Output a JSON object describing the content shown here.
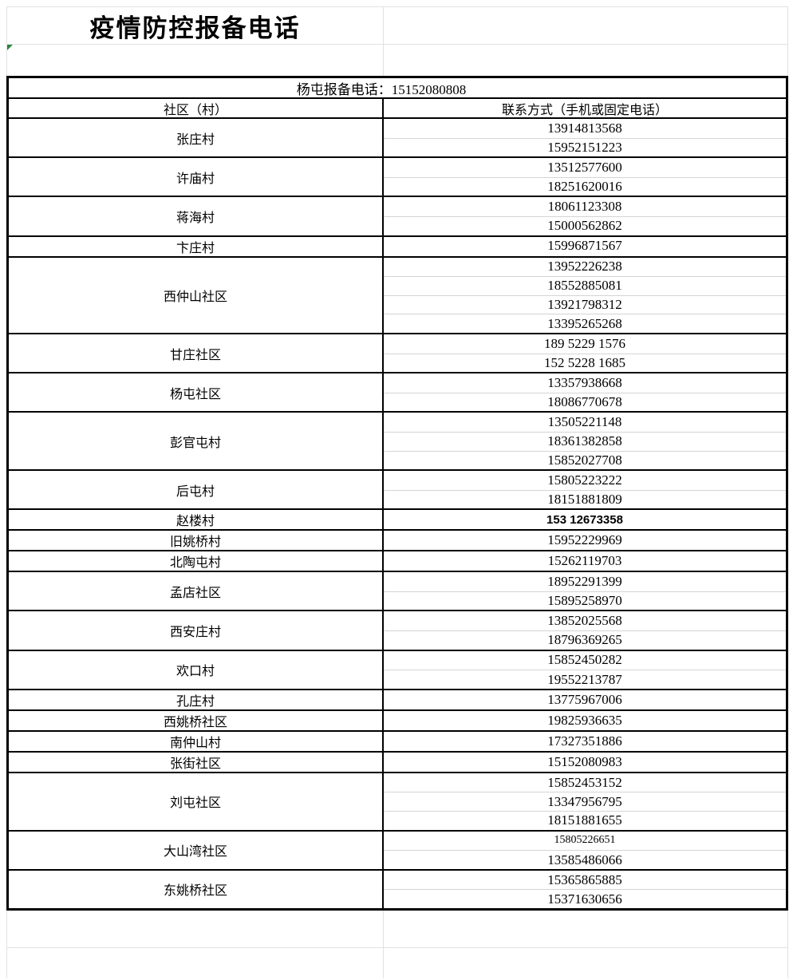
{
  "title": "疫情防控报备电话",
  "banner": "杨屯报备电话：15152080808",
  "columns": {
    "left": "社区（村）",
    "right": "联系方式（手机或固定电话）"
  },
  "colors": {
    "border_black": "#000000",
    "grid_light": "#e2e2e2",
    "row_divider": "#d4d4d4",
    "error_triangle_green": "#2e8540"
  },
  "icons": {
    "cell_error_indicator": "green-corner-triangle"
  },
  "groups": [
    {
      "name": "张庄村",
      "phones": [
        {
          "number": "13914813568"
        },
        {
          "number": "15952151223"
        }
      ]
    },
    {
      "name": "许庙村",
      "phones": [
        {
          "number": "13512577600"
        },
        {
          "number": "18251620016"
        }
      ]
    },
    {
      "name": "蒋海村",
      "phones": [
        {
          "number": "18061123308"
        },
        {
          "number": "15000562862"
        }
      ]
    },
    {
      "name": "卞庄村",
      "phones": [
        {
          "number": "15996871567"
        }
      ]
    },
    {
      "name": "西仲山社区",
      "phones": [
        {
          "number": "13952226238"
        },
        {
          "number": "18552885081"
        },
        {
          "number": "13921798312"
        },
        {
          "number": "13395265268"
        }
      ]
    },
    {
      "name": "甘庄社区",
      "phones": [
        {
          "number": "189 5229 1576"
        },
        {
          "number": "152 5228 1685"
        }
      ]
    },
    {
      "name": "杨屯社区",
      "phones": [
        {
          "number": "13357938668"
        },
        {
          "number": "18086770678"
        }
      ]
    },
    {
      "name": "彭官屯村",
      "phones": [
        {
          "number": "13505221148"
        },
        {
          "number": "18361382858"
        },
        {
          "number": "15852027708"
        }
      ]
    },
    {
      "name": "后屯村",
      "phones": [
        {
          "number": "15805223222"
        },
        {
          "number": "18151881809"
        }
      ]
    },
    {
      "name": "赵楼村",
      "phones": [
        {
          "number": "153 12673358",
          "variant": "sans"
        }
      ]
    },
    {
      "name": "旧姚桥村",
      "phones": [
        {
          "number": "15952229969"
        }
      ]
    },
    {
      "name": "北陶屯村",
      "phones": [
        {
          "number": "15262119703"
        }
      ]
    },
    {
      "name": "孟店社区",
      "phones": [
        {
          "number": "18952291399"
        },
        {
          "number": "15895258970"
        }
      ]
    },
    {
      "name": "西安庄村",
      "phones": [
        {
          "number": "13852025568"
        },
        {
          "number": "18796369265"
        }
      ]
    },
    {
      "name": "欢口村",
      "phones": [
        {
          "number": "15852450282"
        },
        {
          "number": "19552213787"
        }
      ]
    },
    {
      "name": "孔庄村",
      "phones": [
        {
          "number": "13775967006"
        }
      ]
    },
    {
      "name": "西姚桥社区",
      "phones": [
        {
          "number": "19825936635"
        }
      ]
    },
    {
      "name": "南仲山村",
      "phones": [
        {
          "number": "17327351886"
        }
      ]
    },
    {
      "name": "张街社区",
      "phones": [
        {
          "number": "15152080983"
        }
      ]
    },
    {
      "name": "刘屯社区",
      "phones": [
        {
          "number": "15852453152"
        },
        {
          "number": "13347956795"
        },
        {
          "number": "18151881655"
        }
      ]
    },
    {
      "name": "大山湾社区",
      "phones": [
        {
          "number": "15805226651",
          "variant": "small"
        },
        {
          "number": "13585486066"
        }
      ]
    },
    {
      "name": "东姚桥社区",
      "phones": [
        {
          "number": "15365865885"
        },
        {
          "number": "15371630656"
        }
      ]
    }
  ]
}
